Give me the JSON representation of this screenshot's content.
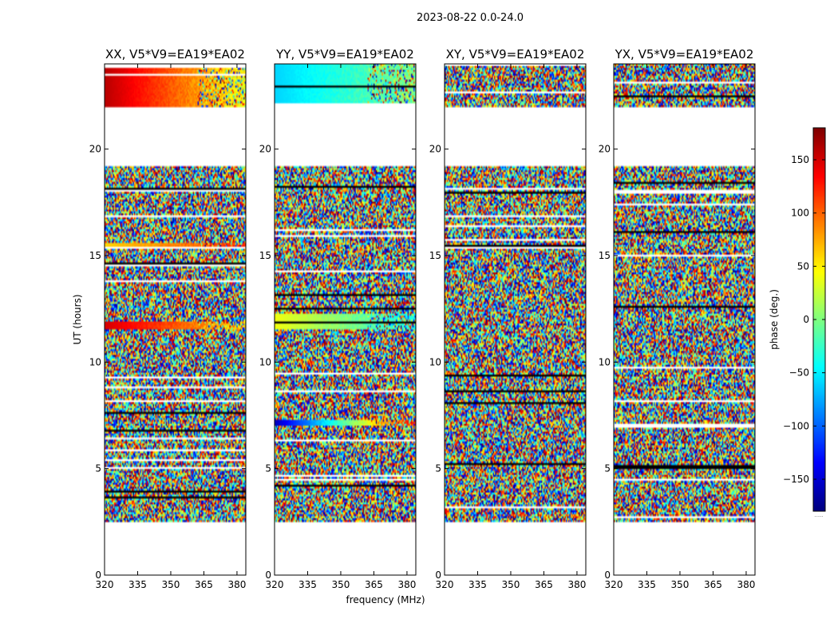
{
  "chart_data": {
    "type": "heatmap",
    "suptitle": "2023-08-22 0.0-24.0",
    "xlabel": "frequency (MHz)",
    "ylabel": "UT (hours)",
    "colorbar": {
      "label": "phase (deg.)",
      "colormap": "jet",
      "range": [
        -180,
        180
      ],
      "ticks": [
        -150,
        -100,
        -50,
        0,
        50,
        100,
        150
      ],
      "tick_labels": [
        "−150",
        "−100",
        "−50",
        "0",
        "50",
        "100",
        "150"
      ],
      "bottom_note": "......"
    },
    "xlim": [
      320,
      384
    ],
    "ylim": [
      0,
      24
    ],
    "xticks": [
      320,
      335,
      350,
      365,
      380
    ],
    "yticks": [
      0,
      5,
      10,
      15,
      20
    ],
    "panels": [
      {
        "title": "XX, V5*V9=EA19*EA02",
        "pol": "XX"
      },
      {
        "title": "YY, V5*V9=EA19*EA02",
        "pol": "YY"
      },
      {
        "title": "XY, V5*V9=EA19*EA02",
        "pol": "XY"
      },
      {
        "title": "YX, V5*V9=EA19*EA02",
        "pol": "YX"
      }
    ],
    "data_time_ranges_hours": [
      [
        2.5,
        19.2
      ],
      [
        22.0,
        24.0
      ]
    ],
    "coherent_phase_segments": [
      {
        "panel": "XX",
        "t_start": 22.0,
        "t_end": 24.0,
        "phase_start": 160,
        "phase_end": 40
      },
      {
        "panel": "XX",
        "t_start": 15.3,
        "t_end": 15.6,
        "phase_start": 60,
        "phase_end": 120
      },
      {
        "panel": "XX",
        "t_start": 11.5,
        "t_end": 11.9,
        "phase_start": 150,
        "phase_end": 60
      },
      {
        "panel": "YY",
        "t_start": 22.0,
        "t_end": 24.0,
        "phase_start": -60,
        "phase_end": 0
      },
      {
        "panel": "YY",
        "t_start": 11.5,
        "t_end": 12.3,
        "phase_start": 40,
        "phase_end": -40
      },
      {
        "panel": "YY",
        "t_start": 7.0,
        "t_end": 7.3,
        "phase_start": -160,
        "phase_end": 140
      }
    ]
  }
}
